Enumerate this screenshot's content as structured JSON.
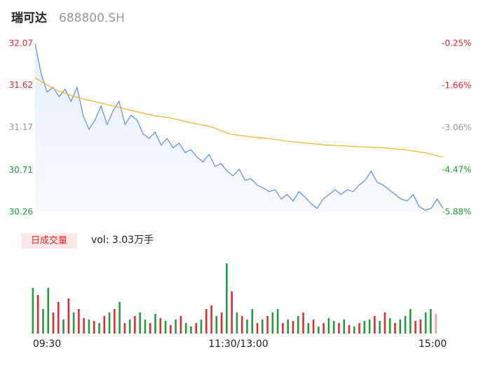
{
  "chart_data": {
    "type": "intraday",
    "title": "瑞可达",
    "subtitle": "688800.SH",
    "ylim": [
      30.26,
      32.07
    ],
    "yticks": [
      32.07,
      31.62,
      31.17,
      30.71,
      30.26
    ],
    "y2lim": [
      -5.88,
      -0.25
    ],
    "y2ticks": [
      {
        "value": -0.25,
        "label": "-0.25%"
      },
      {
        "value": -1.66,
        "label": "-1.66%"
      },
      {
        "value": -3.06,
        "label": "-3.06%"
      },
      {
        "value": -4.47,
        "label": "-4.47%"
      },
      {
        "value": -5.88,
        "label": "-5.88%"
      }
    ],
    "tick_colors": [
      "#e8262d",
      "#e8262d",
      "#999999",
      "#1a9e3a",
      "#1a9e3a"
    ],
    "x_labels": [
      "09:30",
      "11:30/13:00",
      "15:00"
    ],
    "series": [
      {
        "name": "price",
        "color": "#5b8fe0",
        "values": [
          32.07,
          31.75,
          31.55,
          31.6,
          31.5,
          31.58,
          31.45,
          31.6,
          31.3,
          31.15,
          31.25,
          31.4,
          31.2,
          31.35,
          31.45,
          31.2,
          31.3,
          31.25,
          31.1,
          31.05,
          31.12,
          30.98,
          31.05,
          30.95,
          31.0,
          30.9,
          30.93,
          30.85,
          30.8,
          30.88,
          30.75,
          30.78,
          30.7,
          30.65,
          30.72,
          30.6,
          30.62,
          30.55,
          30.52,
          30.48,
          30.5,
          30.4,
          30.45,
          30.38,
          30.48,
          30.42,
          30.35,
          30.3,
          30.4,
          30.45,
          30.5,
          30.45,
          30.5,
          30.48,
          30.55,
          30.6,
          30.7,
          30.58,
          30.55,
          30.5,
          30.45,
          30.4,
          30.38,
          30.45,
          30.32,
          30.28,
          30.3,
          30.4,
          30.3
        ]
      },
      {
        "name": "average",
        "color": "#f0b429",
        "values": [
          31.7,
          31.58,
          31.5,
          31.45,
          31.4,
          31.35,
          31.3,
          31.27,
          31.22,
          31.18,
          31.1,
          31.07,
          31.05,
          31.02,
          31.0,
          30.98,
          30.97,
          30.96,
          30.95,
          30.93,
          30.9,
          30.85
        ]
      }
    ],
    "volume": {
      "legend": "日成交量",
      "label": "vol: 3.03万手",
      "ylim": [
        0,
        100
      ],
      "values": [
        65,
        55,
        35,
        65,
        30,
        45,
        20,
        50,
        30,
        35,
        22,
        20,
        18,
        15,
        25,
        30,
        35,
        45,
        15,
        20,
        25,
        30,
        20,
        15,
        28,
        22,
        18,
        12,
        20,
        25,
        15,
        10,
        15,
        20,
        35,
        40,
        25,
        30,
        100,
        60,
        30,
        25,
        20,
        35,
        15,
        20,
        25,
        30,
        35,
        15,
        20,
        18,
        25,
        30,
        15,
        20,
        10,
        15,
        22,
        18,
        15,
        20,
        12,
        10,
        15,
        18,
        20,
        25,
        18,
        30,
        22,
        15,
        20,
        25,
        35,
        18,
        20,
        30,
        35,
        28
      ],
      "colors": [
        "#1a9e3a",
        "#e8262d",
        "#1a9e3a",
        "#1a9e3a",
        "#e8262d",
        "#e8262d",
        "#1a9e3a",
        "#e8262d",
        "#1a9e3a",
        "#e8262d",
        "#e8262d",
        "#1a9e3a",
        "#e8262d",
        "#1a9e3a",
        "#e8262d",
        "#1a9e3a",
        "#e8262d",
        "#1a9e3a",
        "#e8262d",
        "#1a9e3a",
        "#e8262d",
        "#1a9e3a",
        "#1a9e3a",
        "#e8262d",
        "#1a9e3a",
        "#e8262d",
        "#1a9e3a",
        "#e8262d",
        "#1a9e3a",
        "#e8262d",
        "#1a9e3a",
        "#1a9e3a",
        "#e8262d",
        "#1a9e3a",
        "#e8262d",
        "#e8262d",
        "#1a9e3a",
        "#e8262d",
        "#1a9e3a",
        "#e8262d",
        "#1a9e3a",
        "#e8262d",
        "#1a9e3a",
        "#1a9e3a",
        "#e8262d",
        "#1a9e3a",
        "#e8262d",
        "#1a9e3a",
        "#1a9e3a",
        "#e8262d",
        "#1a9e3a",
        "#e8262d",
        "#1a9e3a",
        "#e8262d",
        "#1a9e3a",
        "#e8262d",
        "#1a9e3a",
        "#e8262d",
        "#1a9e3a",
        "#1a9e3a",
        "#e8262d",
        "#1a9e3a",
        "#e8262d",
        "#1a9e3a",
        "#e8262d",
        "#1a9e3a",
        "#1a9e3a",
        "#e8262d",
        "#1a9e3a",
        "#e8262d",
        "#1a9e3a",
        "#e8262d",
        "#1a9e3a",
        "#1a9e3a",
        "#1a9e3a",
        "#e8262d",
        "#e8262d",
        "#1a9e3a",
        "#1a9e3a",
        "#f5a0a0"
      ]
    }
  }
}
